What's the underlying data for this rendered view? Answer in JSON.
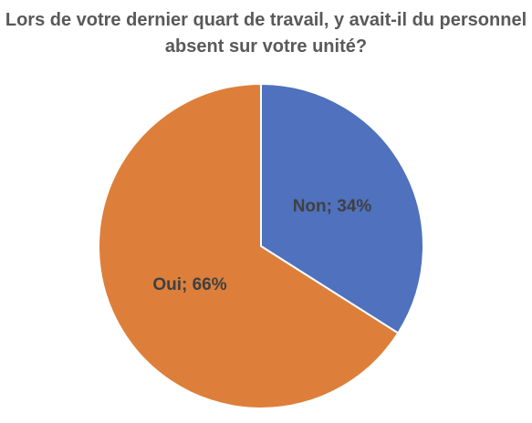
{
  "chart_data": {
    "type": "pie",
    "title": "Lors de votre dernier quart de travail, y avait-il du personnel absent sur votre unité?",
    "values": [
      34,
      66
    ],
    "value_labels": [
      "Non; 34%",
      "Oui; 66%"
    ],
    "colors": [
      "#4f71be",
      "#dd7f3a"
    ]
  }
}
